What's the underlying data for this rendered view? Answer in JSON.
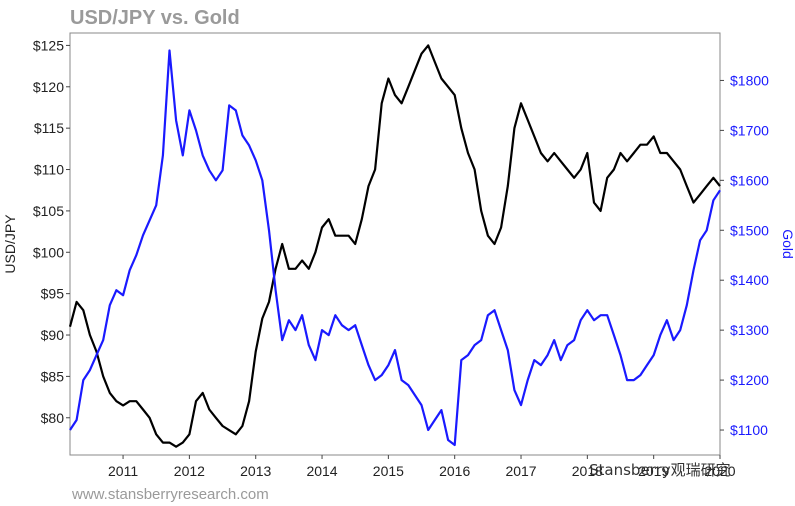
{
  "chart_data": {
    "type": "line",
    "title": "USD/JPY vs. Gold",
    "source": "www.stansberryresearch.com",
    "watermark": "Stansberry观瑞研究",
    "x_tick_labels": [
      "2011",
      "2012",
      "2013",
      "2014",
      "2015",
      "2016",
      "2017",
      "2018",
      "2019",
      "2020"
    ],
    "x_range": [
      2010.2,
      2020.0
    ],
    "left_axis": {
      "label": "USD/JPY",
      "range": [
        75.5,
        126.5
      ],
      "ticks": [
        125,
        120,
        115,
        110,
        105,
        100,
        95,
        90,
        85,
        80
      ],
      "tick_labels": [
        "$125",
        "$120",
        "$115",
        "$110",
        "$105",
        "$100",
        "$95",
        "$90",
        "$85",
        "$80"
      ]
    },
    "right_axis": {
      "label": "Gold",
      "range": [
        1050,
        1895
      ],
      "ticks": [
        1800,
        1700,
        1600,
        1500,
        1400,
        1300,
        1200,
        1100
      ],
      "tick_labels": [
        "$1800",
        "$1700",
        "$1600",
        "$1500",
        "$1400",
        "$1300",
        "$1200",
        "$1100"
      ]
    },
    "grid": false,
    "series": [
      {
        "name": "USD/JPY",
        "axis": "left",
        "color": "#000000",
        "x": [
          2010.2,
          2010.3,
          2010.4,
          2010.5,
          2010.6,
          2010.7,
          2010.8,
          2010.9,
          2011.0,
          2011.1,
          2011.2,
          2011.3,
          2011.4,
          2011.5,
          2011.6,
          2011.7,
          2011.8,
          2011.9,
          2012.0,
          2012.1,
          2012.2,
          2012.3,
          2012.4,
          2012.5,
          2012.6,
          2012.7,
          2012.8,
          2012.9,
          2013.0,
          2013.1,
          2013.2,
          2013.3,
          2013.4,
          2013.5,
          2013.6,
          2013.7,
          2013.8,
          2013.9,
          2014.0,
          2014.1,
          2014.2,
          2014.3,
          2014.4,
          2014.5,
          2014.6,
          2014.7,
          2014.8,
          2014.9,
          2015.0,
          2015.1,
          2015.2,
          2015.3,
          2015.4,
          2015.5,
          2015.6,
          2015.7,
          2015.8,
          2015.9,
          2016.0,
          2016.1,
          2016.2,
          2016.3,
          2016.4,
          2016.5,
          2016.6,
          2016.7,
          2016.8,
          2016.9,
          2017.0,
          2017.1,
          2017.2,
          2017.3,
          2017.4,
          2017.5,
          2017.6,
          2017.7,
          2017.8,
          2017.9,
          2018.0,
          2018.1,
          2018.2,
          2018.3,
          2018.4,
          2018.5,
          2018.6,
          2018.7,
          2018.8,
          2018.9,
          2019.0,
          2019.1,
          2019.2,
          2019.3,
          2019.4,
          2019.5,
          2019.6,
          2019.7,
          2019.8,
          2019.9,
          2020.0
        ],
        "values": [
          91,
          94,
          93,
          90,
          88,
          85,
          83,
          82,
          81.5,
          82,
          82,
          81,
          80,
          78,
          77,
          77,
          76.5,
          77,
          78,
          82,
          83,
          81,
          80,
          79,
          78.5,
          78,
          79,
          82,
          88,
          92,
          94,
          98,
          101,
          98,
          98,
          99,
          98,
          100,
          103,
          104,
          102,
          102,
          102,
          101,
          104,
          108,
          110,
          118,
          121,
          119,
          118,
          120,
          122,
          124,
          125,
          123,
          121,
          120,
          119,
          115,
          112,
          110,
          105,
          102,
          101,
          103,
          108,
          115,
          118,
          116,
          114,
          112,
          111,
          112,
          111,
          110,
          109,
          110,
          112,
          106,
          105,
          109,
          110,
          112,
          111,
          112,
          113,
          113,
          114,
          112,
          112,
          111,
          110,
          108,
          106,
          107,
          108,
          109,
          108
        ]
      },
      {
        "name": "Gold",
        "axis": "right",
        "color": "#1a1aff",
        "x": [
          2010.2,
          2010.3,
          2010.4,
          2010.5,
          2010.6,
          2010.7,
          2010.8,
          2010.9,
          2011.0,
          2011.1,
          2011.2,
          2011.3,
          2011.4,
          2011.5,
          2011.6,
          2011.7,
          2011.8,
          2011.9,
          2012.0,
          2012.1,
          2012.2,
          2012.3,
          2012.4,
          2012.5,
          2012.6,
          2012.7,
          2012.8,
          2012.9,
          2013.0,
          2013.1,
          2013.2,
          2013.3,
          2013.4,
          2013.5,
          2013.6,
          2013.7,
          2013.8,
          2013.9,
          2014.0,
          2014.1,
          2014.2,
          2014.3,
          2014.4,
          2014.5,
          2014.6,
          2014.7,
          2014.8,
          2014.9,
          2015.0,
          2015.1,
          2015.2,
          2015.3,
          2015.4,
          2015.5,
          2015.6,
          2015.7,
          2015.8,
          2015.9,
          2016.0,
          2016.1,
          2016.2,
          2016.3,
          2016.4,
          2016.5,
          2016.6,
          2016.7,
          2016.8,
          2016.9,
          2017.0,
          2017.1,
          2017.2,
          2017.3,
          2017.4,
          2017.5,
          2017.6,
          2017.7,
          2017.8,
          2017.9,
          2018.0,
          2018.1,
          2018.2,
          2018.3,
          2018.4,
          2018.5,
          2018.6,
          2018.7,
          2018.8,
          2018.9,
          2019.0,
          2019.1,
          2019.2,
          2019.3,
          2019.4,
          2019.5,
          2019.6,
          2019.7,
          2019.8,
          2019.9,
          2020.0
        ],
        "values": [
          1100,
          1120,
          1200,
          1220,
          1250,
          1280,
          1350,
          1380,
          1370,
          1420,
          1450,
          1490,
          1520,
          1550,
          1650,
          1860,
          1720,
          1650,
          1740,
          1700,
          1650,
          1620,
          1600,
          1620,
          1750,
          1740,
          1690,
          1670,
          1640,
          1600,
          1500,
          1380,
          1280,
          1320,
          1300,
          1330,
          1270,
          1240,
          1300,
          1290,
          1330,
          1310,
          1300,
          1310,
          1270,
          1230,
          1200,
          1210,
          1230,
          1260,
          1200,
          1190,
          1170,
          1150,
          1100,
          1120,
          1140,
          1080,
          1070,
          1240,
          1250,
          1270,
          1280,
          1330,
          1340,
          1300,
          1260,
          1180,
          1150,
          1200,
          1240,
          1230,
          1250,
          1280,
          1240,
          1270,
          1280,
          1320,
          1340,
          1320,
          1330,
          1330,
          1290,
          1250,
          1200,
          1200,
          1210,
          1230,
          1250,
          1290,
          1320,
          1280,
          1300,
          1350,
          1420,
          1480,
          1500,
          1560,
          1580
        ]
      }
    ]
  }
}
